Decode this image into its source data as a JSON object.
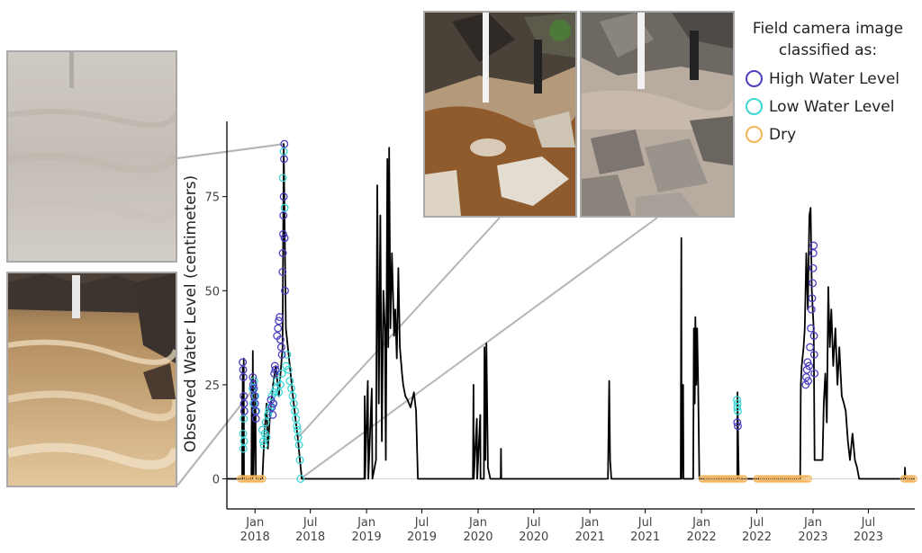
{
  "chart_data": {
    "type": "line",
    "ylabel": "Observed Water Level (centimeters)",
    "xlabel": "",
    "ylim": [
      -8,
      95
    ],
    "xlim": [
      "2017-10-01",
      "2023-11-30"
    ],
    "y_ticks": [
      0,
      25,
      50,
      75
    ],
    "x_ticks": [
      {
        "date": "2018-01-01",
        "line1": "Jan",
        "line2": "2018"
      },
      {
        "date": "2018-07-01",
        "line1": "Jul",
        "line2": "2018"
      },
      {
        "date": "2019-01-01",
        "line1": "Jan",
        "line2": "2019"
      },
      {
        "date": "2019-07-01",
        "line1": "Jul",
        "line2": "2019"
      },
      {
        "date": "2020-01-01",
        "line1": "Jan",
        "line2": "2020"
      },
      {
        "date": "2020-07-01",
        "line1": "Jul",
        "line2": "2020"
      },
      {
        "date": "2021-01-01",
        "line1": "Jan",
        "line2": "2021"
      },
      {
        "date": "2021-07-01",
        "line1": "Jul",
        "line2": "2021"
      },
      {
        "date": "2022-01-01",
        "line1": "Jan",
        "line2": "2022"
      },
      {
        "date": "2022-07-01",
        "line1": "Jul",
        "line2": "2022"
      },
      {
        "date": "2023-01-01",
        "line1": "Jan",
        "line2": "2023"
      },
      {
        "date": "2023-07-01",
        "line1": "Jul",
        "line2": "2023"
      }
    ],
    "series": [
      {
        "kind": "line",
        "color": "#000000",
        "points": [
          [
            "2017-10-01",
            0
          ],
          [
            "2017-11-20",
            0
          ],
          [
            "2017-11-20",
            22
          ],
          [
            "2017-11-21",
            0
          ],
          [
            "2017-11-22",
            30
          ],
          [
            "2017-11-23",
            0
          ],
          [
            "2017-11-25",
            32
          ],
          [
            "2017-11-26",
            0
          ],
          [
            "2017-12-20",
            0
          ],
          [
            "2017-12-22",
            27
          ],
          [
            "2017-12-23",
            0
          ],
          [
            "2017-12-25",
            34
          ],
          [
            "2017-12-27",
            0
          ],
          [
            "2018-01-02",
            26
          ],
          [
            "2018-01-04",
            0
          ],
          [
            "2018-01-25",
            0
          ],
          [
            "2018-02-01",
            12
          ],
          [
            "2018-02-08",
            20
          ],
          [
            "2018-02-12",
            8
          ],
          [
            "2018-02-20",
            18
          ],
          [
            "2018-03-01",
            25
          ],
          [
            "2018-03-10",
            30
          ],
          [
            "2018-03-20",
            22
          ],
          [
            "2018-04-01",
            35
          ],
          [
            "2018-04-05",
            89
          ],
          [
            "2018-04-12",
            40
          ],
          [
            "2018-04-25",
            30
          ],
          [
            "2018-05-05",
            22
          ],
          [
            "2018-05-15",
            15
          ],
          [
            "2018-05-22",
            10
          ],
          [
            "2018-05-28",
            5
          ],
          [
            "2018-06-03",
            0
          ],
          [
            "2018-12-25",
            0
          ],
          [
            "2018-12-26",
            22
          ],
          [
            "2018-12-27",
            0
          ],
          [
            "2019-01-05",
            26
          ],
          [
            "2019-01-07",
            0
          ],
          [
            "2019-01-18",
            24
          ],
          [
            "2019-01-20",
            0
          ],
          [
            "2019-02-01",
            5
          ],
          [
            "2019-02-05",
            78
          ],
          [
            "2019-02-10",
            20
          ],
          [
            "2019-02-15",
            70
          ],
          [
            "2019-02-20",
            10
          ],
          [
            "2019-02-25",
            50
          ],
          [
            "2019-03-02",
            40
          ],
          [
            "2019-03-05",
            5
          ],
          [
            "2019-03-10",
            85
          ],
          [
            "2019-03-13",
            35
          ],
          [
            "2019-03-16",
            88
          ],
          [
            "2019-03-20",
            40
          ],
          [
            "2019-03-25",
            60
          ],
          [
            "2019-04-01",
            38
          ],
          [
            "2019-04-05",
            45
          ],
          [
            "2019-04-10",
            32
          ],
          [
            "2019-04-15",
            56
          ],
          [
            "2019-04-20",
            35
          ],
          [
            "2019-04-27",
            28
          ],
          [
            "2019-05-01",
            25
          ],
          [
            "2019-05-08",
            22
          ],
          [
            "2019-05-15",
            21
          ],
          [
            "2019-05-25",
            19
          ],
          [
            "2019-06-05",
            23
          ],
          [
            "2019-06-12",
            18
          ],
          [
            "2019-06-18",
            0
          ],
          [
            "2019-12-15",
            0
          ],
          [
            "2019-12-17",
            25
          ],
          [
            "2019-12-18",
            0
          ],
          [
            "2019-12-28",
            16
          ],
          [
            "2019-12-29",
            0
          ],
          [
            "2020-01-08",
            17
          ],
          [
            "2020-01-09",
            0
          ],
          [
            "2020-01-20",
            0
          ],
          [
            "2020-01-22",
            35
          ],
          [
            "2020-01-25",
            5
          ],
          [
            "2020-01-28",
            36
          ],
          [
            "2020-02-02",
            3
          ],
          [
            "2020-02-10",
            0
          ],
          [
            "2020-03-15",
            0
          ],
          [
            "2020-03-16",
            8
          ],
          [
            "2020-03-17",
            0
          ],
          [
            "2020-08-10",
            0
          ],
          [
            "2020-10-15",
            0
          ],
          [
            "2021-03-01",
            0
          ],
          [
            "2021-03-05",
            26
          ],
          [
            "2021-03-08",
            5
          ],
          [
            "2021-03-12",
            0
          ],
          [
            "2021-10-25",
            0
          ],
          [
            "2021-10-27",
            64
          ],
          [
            "2021-10-28",
            0
          ],
          [
            "2021-11-02",
            25
          ],
          [
            "2021-11-03",
            0
          ],
          [
            "2021-12-05",
            0
          ],
          [
            "2021-12-07",
            40
          ],
          [
            "2021-12-10",
            20
          ],
          [
            "2021-12-12",
            43
          ],
          [
            "2021-12-15",
            25
          ],
          [
            "2021-12-18",
            40
          ],
          [
            "2021-12-21",
            25
          ],
          [
            "2021-12-25",
            0
          ],
          [
            "2022-01-05",
            0
          ],
          [
            "2022-04-28",
            0
          ],
          [
            "2022-04-29",
            23
          ],
          [
            "2022-05-01",
            10
          ],
          [
            "2022-05-03",
            0
          ],
          [
            "2022-11-20",
            0
          ],
          [
            "2022-11-22",
            25
          ],
          [
            "2022-11-25",
            30
          ],
          [
            "2022-12-01",
            35
          ],
          [
            "2022-12-05",
            40
          ],
          [
            "2022-12-10",
            60
          ],
          [
            "2022-12-15",
            45
          ],
          [
            "2022-12-20",
            70
          ],
          [
            "2022-12-24",
            72
          ],
          [
            "2022-12-28",
            50
          ],
          [
            "2023-01-03",
            40
          ],
          [
            "2023-01-06",
            5
          ],
          [
            "2023-02-01",
            5
          ],
          [
            "2023-02-05",
            20
          ],
          [
            "2023-02-10",
            28
          ],
          [
            "2023-02-15",
            15
          ],
          [
            "2023-02-20",
            51
          ],
          [
            "2023-02-25",
            35
          ],
          [
            "2023-03-02",
            45
          ],
          [
            "2023-03-08",
            30
          ],
          [
            "2023-03-15",
            40
          ],
          [
            "2023-03-22",
            25
          ],
          [
            "2023-03-28",
            35
          ],
          [
            "2023-04-05",
            22
          ],
          [
            "2023-04-12",
            20
          ],
          [
            "2023-04-18",
            18
          ],
          [
            "2023-04-25",
            10
          ],
          [
            "2023-05-02",
            5
          ],
          [
            "2023-05-10",
            12
          ],
          [
            "2023-05-18",
            5
          ],
          [
            "2023-05-25",
            3
          ],
          [
            "2023-06-01",
            0
          ],
          [
            "2023-10-28",
            0
          ],
          [
            "2023-10-29",
            3
          ],
          [
            "2023-10-30",
            0
          ],
          [
            "2023-11-30",
            0
          ]
        ]
      },
      {
        "name": "Dry",
        "kind": "markers",
        "color": "#f5b45a",
        "segments": [
          [
            "2017-11-15",
            "2018-01-31"
          ],
          [
            "2022-01-03",
            "2022-05-25"
          ],
          [
            "2022-07-01",
            "2022-12-20"
          ],
          [
            "2023-10-25",
            "2023-11-28"
          ]
        ]
      },
      {
        "name": "Low Water Level",
        "kind": "markers",
        "color": "#3dd6d6",
        "points": [
          [
            "2017-11-23",
            12
          ],
          [
            "2017-11-24",
            8
          ],
          [
            "2017-11-25",
            16
          ],
          [
            "2017-11-26",
            10
          ],
          [
            "2017-12-24",
            24
          ],
          [
            "2017-12-27",
            20
          ],
          [
            "2017-12-29",
            26
          ],
          [
            "2018-01-02",
            22
          ],
          [
            "2018-01-05",
            18
          ],
          [
            "2018-01-25",
            13
          ],
          [
            "2018-01-28",
            10
          ],
          [
            "2018-01-30",
            9
          ],
          [
            "2018-02-02",
            12
          ],
          [
            "2018-02-05",
            15
          ],
          [
            "2018-02-08",
            11
          ],
          [
            "2018-02-12",
            17
          ],
          [
            "2018-02-16",
            18
          ],
          [
            "2018-02-20",
            19
          ],
          [
            "2018-02-25",
            22
          ],
          [
            "2018-03-01",
            20
          ],
          [
            "2018-03-05",
            23
          ],
          [
            "2018-03-10",
            24
          ],
          [
            "2018-03-15",
            26
          ],
          [
            "2018-03-20",
            23
          ],
          [
            "2018-03-25",
            25
          ],
          [
            "2018-03-30",
            28
          ],
          [
            "2018-04-02",
            80
          ],
          [
            "2018-04-05",
            87
          ],
          [
            "2018-04-08",
            72
          ],
          [
            "2018-04-12",
            30
          ],
          [
            "2018-04-16",
            33
          ],
          [
            "2018-04-20",
            29
          ],
          [
            "2018-04-25",
            26
          ],
          [
            "2018-04-30",
            24
          ],
          [
            "2018-05-04",
            22
          ],
          [
            "2018-05-08",
            20
          ],
          [
            "2018-05-12",
            18
          ],
          [
            "2018-05-15",
            16
          ],
          [
            "2018-05-18",
            14
          ],
          [
            "2018-05-20",
            13
          ],
          [
            "2018-05-22",
            11
          ],
          [
            "2018-05-25",
            9
          ],
          [
            "2018-05-28",
            5
          ],
          [
            "2018-05-30",
            0
          ],
          [
            "2022-04-27",
            21
          ],
          [
            "2022-04-28",
            19
          ],
          [
            "2022-04-29",
            20
          ],
          [
            "2022-04-30",
            18
          ]
        ]
      },
      {
        "name": "High Water Level",
        "kind": "markers",
        "color": "#4b3fc0",
        "points": [
          [
            "2017-11-22",
            31
          ],
          [
            "2017-11-23",
            29
          ],
          [
            "2017-11-24",
            27
          ],
          [
            "2017-11-25",
            22
          ],
          [
            "2017-11-26",
            20
          ],
          [
            "2017-11-27",
            18
          ],
          [
            "2017-12-25",
            27
          ],
          [
            "2017-12-26",
            25
          ],
          [
            "2017-12-28",
            24
          ],
          [
            "2017-12-30",
            22
          ],
          [
            "2018-01-01",
            20
          ],
          [
            "2018-01-03",
            18
          ],
          [
            "2018-01-04",
            16
          ],
          [
            "2018-02-22",
            21
          ],
          [
            "2018-02-25",
            19
          ],
          [
            "2018-02-28",
            17
          ],
          [
            "2018-03-02",
            20
          ],
          [
            "2018-03-05",
            28
          ],
          [
            "2018-03-07",
            30
          ],
          [
            "2018-03-09",
            29
          ],
          [
            "2018-03-14",
            38
          ],
          [
            "2018-03-17",
            40
          ],
          [
            "2018-03-20",
            42
          ],
          [
            "2018-03-23",
            43
          ],
          [
            "2018-03-25",
            37
          ],
          [
            "2018-03-28",
            35
          ],
          [
            "2018-03-30",
            33
          ],
          [
            "2018-04-01",
            55
          ],
          [
            "2018-04-02",
            60
          ],
          [
            "2018-04-03",
            65
          ],
          [
            "2018-04-04",
            70
          ],
          [
            "2018-04-05",
            75
          ],
          [
            "2018-04-06",
            85
          ],
          [
            "2018-04-07",
            89
          ],
          [
            "2018-04-08",
            64
          ],
          [
            "2018-04-09",
            50
          ],
          [
            "2022-04-28",
            15
          ],
          [
            "2022-04-30",
            14
          ],
          [
            "2022-12-08",
            25
          ],
          [
            "2022-12-10",
            27
          ],
          [
            "2022-12-12",
            29
          ],
          [
            "2022-12-14",
            31
          ],
          [
            "2022-12-16",
            26
          ],
          [
            "2022-12-19",
            30
          ],
          [
            "2022-12-22",
            35
          ],
          [
            "2022-12-25",
            40
          ],
          [
            "2022-12-27",
            45
          ],
          [
            "2022-12-29",
            48
          ],
          [
            "2022-12-31",
            52
          ],
          [
            "2023-01-01",
            56
          ],
          [
            "2023-01-02",
            60
          ],
          [
            "2023-01-03",
            62
          ],
          [
            "2023-01-04",
            38
          ],
          [
            "2023-01-05",
            33
          ],
          [
            "2023-01-06",
            28
          ]
        ]
      }
    ]
  },
  "legend": {
    "title_line1": "Field camera image",
    "title_line2": "classified as:",
    "items": [
      {
        "label": "High Water Level",
        "color": "#4b3fc0"
      },
      {
        "label": "Low Water Level",
        "color": "#3dd6d6"
      },
      {
        "label": "Dry",
        "color": "#f5b45a"
      }
    ]
  },
  "photos": [
    {
      "subject": "flooded-stream",
      "callout_to": [
        "2018-04-05",
        89
      ]
    },
    {
      "subject": "high-muddy-flow",
      "callout_to": [
        "2017-12-28",
        24
      ]
    },
    {
      "subject": "low-water-pool",
      "callout_to": [
        "2018-05-22",
        11
      ]
    },
    {
      "subject": "dry-streambed",
      "callout_to": [
        "2018-05-30",
        0
      ]
    }
  ]
}
